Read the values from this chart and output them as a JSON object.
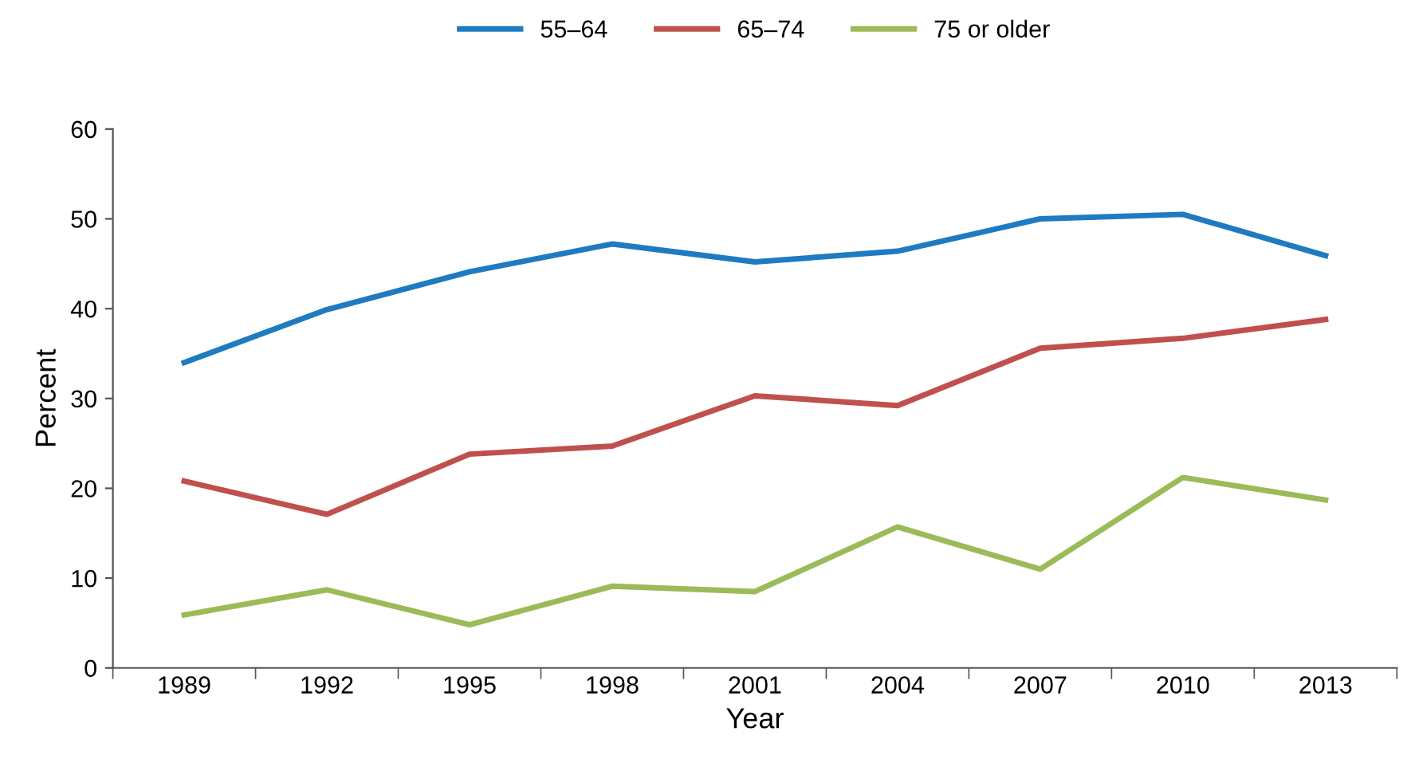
{
  "chart_data": {
    "type": "line",
    "xlabel": "Year",
    "ylabel": "Percent",
    "categories": [
      "1989",
      "1992",
      "1995",
      "1998",
      "2001",
      "2004",
      "2007",
      "2010",
      "2013"
    ],
    "series": [
      {
        "name": "55–64",
        "color": "#1f7bc1",
        "values": [
          34.0,
          39.9,
          44.1,
          47.2,
          45.2,
          46.4,
          50.0,
          50.5,
          45.9
        ]
      },
      {
        "name": "65–74",
        "color": "#c0504d",
        "values": [
          20.8,
          17.1,
          23.8,
          24.7,
          30.3,
          29.2,
          35.6,
          36.7,
          38.8
        ]
      },
      {
        "name": "75 or older",
        "color": "#9bbb59",
        "values": [
          5.9,
          8.7,
          4.8,
          9.1,
          8.5,
          15.7,
          11.0,
          21.2,
          18.7
        ]
      }
    ],
    "ylim": [
      0,
      60
    ],
    "yticks": [
      0,
      10,
      20,
      30,
      40,
      50,
      60
    ],
    "grid": false,
    "legend": "top",
    "marker": "none",
    "line_style": "solid"
  }
}
